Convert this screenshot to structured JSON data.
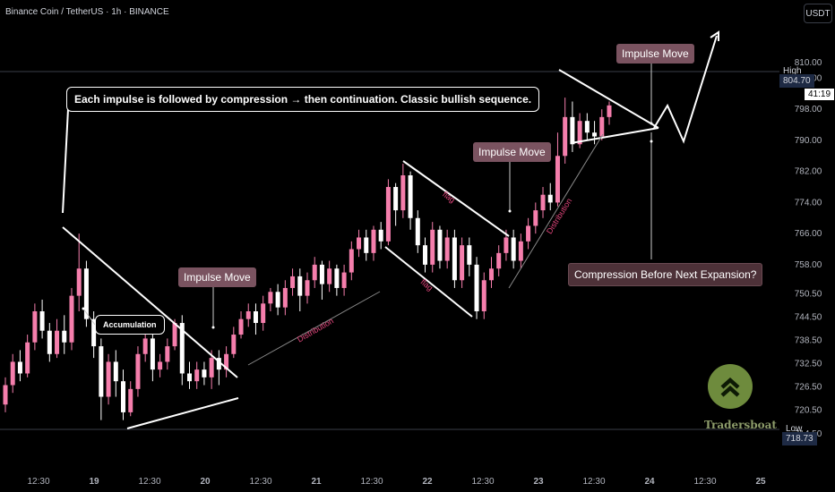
{
  "header": {
    "symbol_title": "Binance Coin / TetherUS · 1h · BINANCE",
    "currency_button": "USDT"
  },
  "price_tags": {
    "high_label": "High",
    "high_value": "804.70",
    "countdown": "41:19",
    "low_label": "Low",
    "low_value": "718.73"
  },
  "annotations": {
    "main_callout": "Each impulse is followed by compression → then continuation. Classic bullish sequence.",
    "impulse_1": "Impulse Move",
    "impulse_2": "Impulse Move",
    "impulse_3": "Impulse Move",
    "accumulation": "Accumulation",
    "compression": "Compression Before Next Expansion?",
    "distribution_1": "Distribution",
    "distribution_2": "Distribution",
    "flag_top": "flag",
    "flag_bottom": "flag"
  },
  "branding": {
    "logo_text": "Tradersboat"
  },
  "colors": {
    "bull": "#f57eac",
    "bear": "#ffffff",
    "background": "#000000",
    "accent_pink": "#e0457b"
  },
  "chart_data": {
    "type": "candlestick",
    "title": "Binance Coin / TetherUS · 1h · BINANCE",
    "y_ticks": [
      "810.00",
      "806.00",
      "798.00",
      "790.00",
      "782.00",
      "774.00",
      "766.00",
      "758.00",
      "750.50",
      "744.50",
      "738.50",
      "732.50",
      "726.50",
      "720.50",
      "714.50"
    ],
    "y_tick_values": [
      810,
      806,
      798,
      790,
      782,
      774,
      766,
      758,
      750.5,
      744.5,
      738.5,
      732.5,
      726.5,
      720.5,
      714.5
    ],
    "x_ticks": [
      "12:30",
      "19",
      "12:30",
      "20",
      "12:30",
      "21",
      "12:30",
      "22",
      "12:30",
      "23",
      "12:30",
      "24",
      "12:30",
      "25"
    ],
    "ylim": [
      711,
      816
    ],
    "high": 804.7,
    "low": 718.73,
    "grid": false,
    "candles": [
      [
        722,
        727,
        720,
        729
      ],
      [
        727,
        733,
        725,
        735
      ],
      [
        733,
        730,
        728,
        736
      ],
      [
        730,
        738,
        729,
        740
      ],
      [
        738,
        746,
        736,
        748
      ],
      [
        746,
        741,
        739,
        749
      ],
      [
        741,
        735,
        733,
        743
      ],
      [
        735,
        741,
        734,
        744
      ],
      [
        741,
        738,
        735,
        745
      ],
      [
        738,
        750,
        736,
        752
      ],
      [
        750,
        757,
        746,
        766
      ],
      [
        757,
        744,
        742,
        759
      ],
      [
        744,
        737,
        734,
        746
      ],
      [
        737,
        724,
        718,
        739
      ],
      [
        724,
        733,
        722,
        735
      ],
      [
        733,
        728,
        724,
        736
      ],
      [
        728,
        720,
        718,
        731
      ],
      [
        720,
        726,
        719,
        728
      ],
      [
        726,
        735,
        724,
        737
      ],
      [
        735,
        739,
        733,
        741
      ],
      [
        739,
        731,
        728,
        741
      ],
      [
        731,
        733,
        729,
        735
      ],
      [
        733,
        737,
        731,
        739
      ],
      [
        737,
        743,
        736,
        744
      ],
      [
        743,
        730,
        727,
        745
      ],
      [
        730,
        728,
        726,
        733
      ],
      [
        728,
        731,
        726,
        733
      ],
      [
        731,
        729,
        727,
        733
      ],
      [
        729,
        734,
        726,
        736
      ],
      [
        734,
        731,
        727,
        736
      ],
      [
        731,
        735,
        729,
        737
      ],
      [
        735,
        740,
        734,
        742
      ],
      [
        740,
        744,
        739,
        746
      ],
      [
        744,
        746,
        742,
        748
      ],
      [
        746,
        743,
        740,
        748
      ],
      [
        743,
        748,
        741,
        750
      ],
      [
        748,
        751,
        746,
        752
      ],
      [
        751,
        747,
        745,
        753
      ],
      [
        747,
        752,
        745,
        754
      ],
      [
        752,
        755,
        750,
        757
      ],
      [
        755,
        750,
        746,
        757
      ],
      [
        750,
        754,
        748,
        756
      ],
      [
        754,
        758,
        752,
        760
      ],
      [
        758,
        753,
        749,
        759
      ],
      [
        753,
        757,
        751,
        759
      ],
      [
        757,
        752,
        750,
        758
      ],
      [
        752,
        756,
        750,
        758
      ],
      [
        756,
        762,
        754,
        764
      ],
      [
        762,
        765,
        760,
        767
      ],
      [
        765,
        761,
        759,
        767
      ],
      [
        761,
        767,
        759,
        768
      ],
      [
        767,
        764,
        762,
        769
      ],
      [
        764,
        778,
        763,
        780
      ],
      [
        778,
        772,
        768,
        779
      ],
      [
        772,
        781,
        770,
        784
      ],
      [
        781,
        770,
        767,
        782
      ],
      [
        770,
        763,
        761,
        772
      ],
      [
        763,
        758,
        756,
        765
      ],
      [
        758,
        767,
        756,
        769
      ],
      [
        767,
        759,
        757,
        768
      ],
      [
        759,
        765,
        757,
        767
      ],
      [
        765,
        754,
        752,
        767
      ],
      [
        754,
        763,
        752,
        765
      ],
      [
        763,
        758,
        755,
        765
      ],
      [
        758,
        746,
        744,
        760
      ],
      [
        746,
        754,
        744,
        756
      ],
      [
        754,
        757,
        752,
        760
      ],
      [
        757,
        761,
        755,
        763
      ],
      [
        761,
        765,
        759,
        767
      ],
      [
        765,
        759,
        757,
        767
      ],
      [
        759,
        764,
        757,
        766
      ],
      [
        764,
        768,
        762,
        770
      ],
      [
        768,
        772,
        766,
        774
      ],
      [
        772,
        776,
        770,
        778
      ],
      [
        776,
        774,
        772,
        779
      ],
      [
        774,
        786,
        773,
        792
      ],
      [
        786,
        796,
        784,
        801
      ],
      [
        796,
        789,
        787,
        800
      ],
      [
        789,
        795,
        788,
        797
      ],
      [
        795,
        792,
        790,
        797
      ],
      [
        792,
        791,
        789,
        795
      ],
      [
        791,
        796,
        790,
        798
      ],
      [
        796,
        799,
        794,
        800
      ]
    ]
  }
}
